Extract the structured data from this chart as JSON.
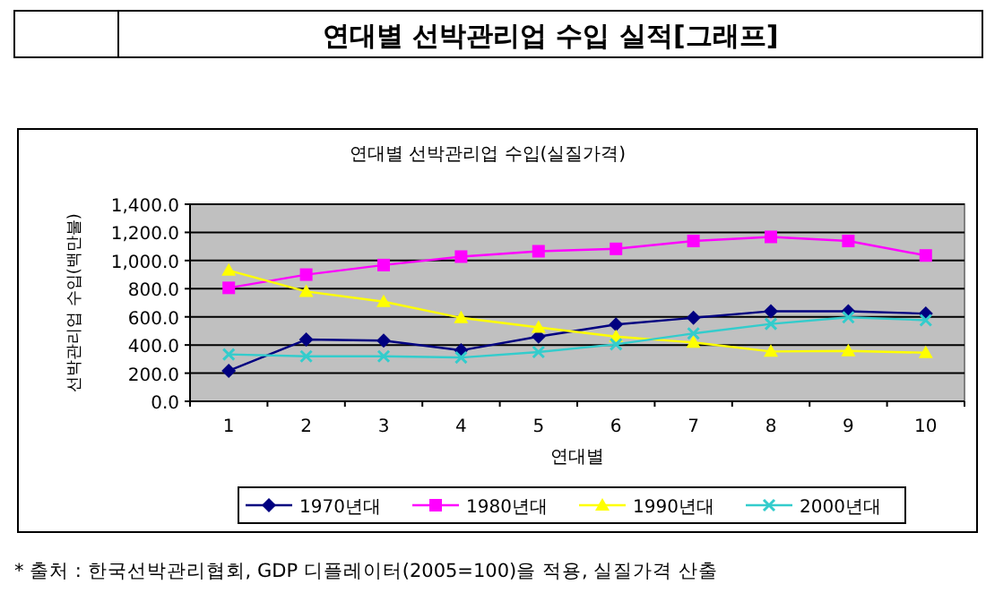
{
  "chart_data": {
    "type": "line",
    "title": "연대별 선박관리업 수입 실적[그래프]",
    "subtitle": "연대별 선박관리업 수입(실질가격)",
    "xlabel": "연대별",
    "ylabel": "선박관리업 수입(백만불)",
    "categories": [
      "1",
      "2",
      "3",
      "4",
      "5",
      "6",
      "7",
      "8",
      "9",
      "10"
    ],
    "series": [
      {
        "name": "1970년대",
        "color": "#000080",
        "marker": "diamond",
        "values": [
          217,
          439,
          431,
          362,
          460,
          546,
          593,
          640,
          640,
          623
        ]
      },
      {
        "name": "1980년대",
        "color": "#ff00ff",
        "marker": "square",
        "values": [
          806,
          900,
          968,
          1028,
          1066,
          1083,
          1139,
          1168,
          1139,
          1036
        ]
      },
      {
        "name": "1990년대",
        "color": "#ffff00",
        "marker": "triangle",
        "values": [
          930,
          780,
          708,
          593,
          525,
          460,
          418,
          354,
          358,
          345
        ]
      },
      {
        "name": "2000년대",
        "color": "#33cccc",
        "marker": "cross",
        "values": [
          333,
          320,
          320,
          311,
          350,
          405,
          482,
          550,
          597,
          576
        ]
      }
    ],
    "ylim": [
      0,
      1400
    ],
    "yticks": [
      {
        "value": 0,
        "label": "0.0"
      },
      {
        "value": 200,
        "label": "200.0"
      },
      {
        "value": 400,
        "label": "400.0"
      },
      {
        "value": 600,
        "label": "600.0"
      },
      {
        "value": 800,
        "label": "800.0"
      },
      {
        "value": 1000,
        "label": "1,000.0"
      },
      {
        "value": 1200,
        "label": "1,200.0"
      },
      {
        "value": 1400,
        "label": "1,400.0"
      }
    ],
    "grid": "y",
    "legend": "bottom",
    "line_style": "solid",
    "annotations": [
      "* 출처 : 한국선박관리협회, GDP 디플레이터(2005=100)을 적용, 실질가격 산출"
    ]
  }
}
